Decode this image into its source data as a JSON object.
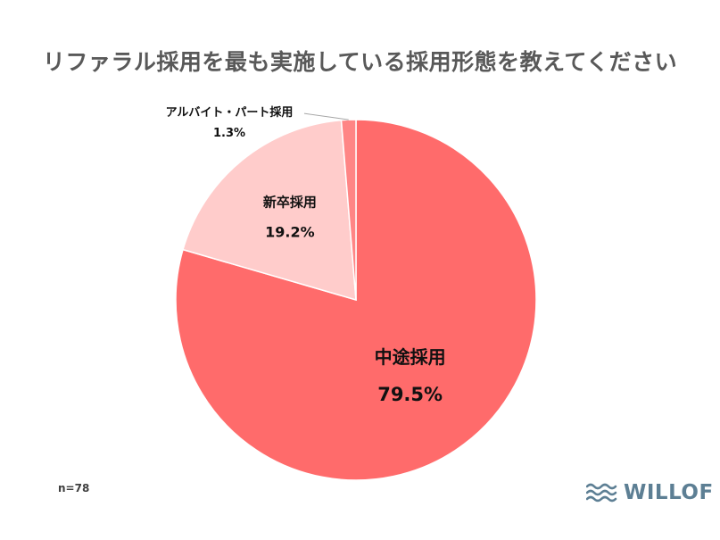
{
  "chart_data": {
    "type": "pie",
    "title": "リファラル採用を最も実施している採用形態を教えてください",
    "slices": [
      {
        "label": "中途採用",
        "value": 79.5,
        "value_label": "79.5%",
        "color": "#ff6b6b"
      },
      {
        "label": "新卒採用",
        "value": 19.2,
        "value_label": "19.2%",
        "color": "#ffcccb"
      },
      {
        "label": "アルバイト・パート採用",
        "value": 1.3,
        "value_label": "1.3%",
        "color": "#ff8585"
      }
    ],
    "start_angle": "12 o'clock",
    "direction": "clockwise",
    "legend": "none",
    "note": "n=78"
  },
  "logo": {
    "text": "WILLOF",
    "color": "#5d7f94"
  }
}
